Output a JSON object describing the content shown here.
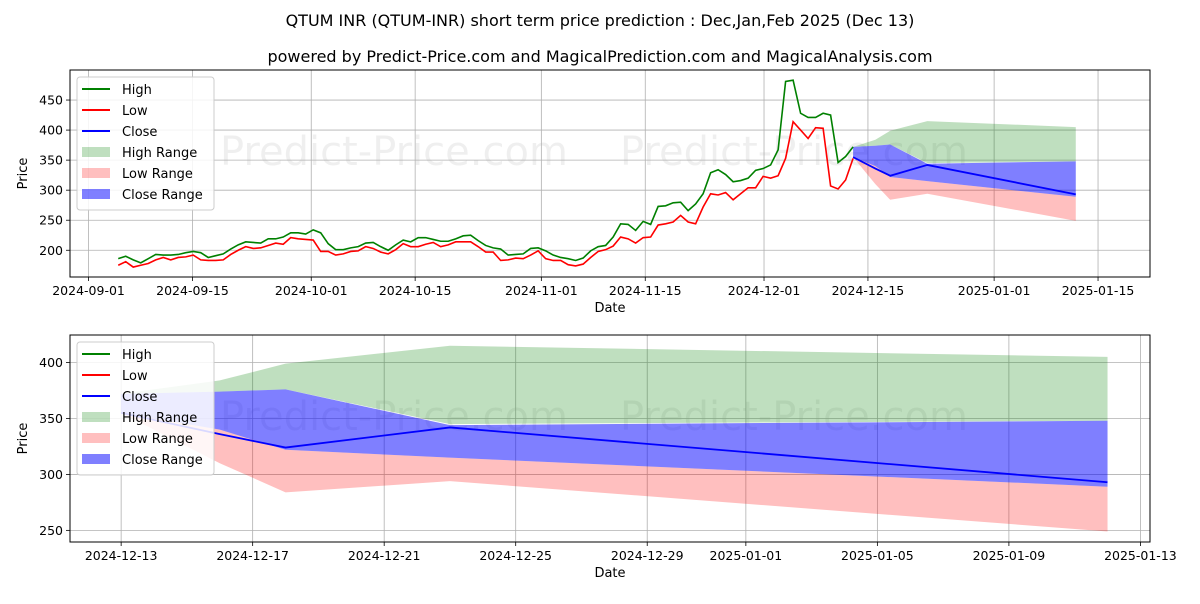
{
  "title": "QTUM INR (QTUM-INR) short term price prediction : Dec,Jan,Feb 2025 (Dec 13)",
  "subtitle": "powered by Predict-Price.com and MagicalPrediction.com and MagicalAnalysis.com",
  "watermark": "Predict-Price.com",
  "colors": {
    "high": "#008000",
    "low": "#ff0000",
    "close": "#0000ff"
  },
  "legend": [
    "High",
    "Low",
    "Close",
    "High Range",
    "Low Range",
    "Close Range"
  ],
  "chart_data": [
    {
      "type": "line",
      "id": "top",
      "xlabel": "Date",
      "ylabel": "Price",
      "xlim": [
        "2024-08-29T12:00",
        "2025-01-22T00:00"
      ],
      "ylim": [
        155.5,
        500
      ],
      "x_ticks": [
        "2024-09-01",
        "2024-09-15",
        "2024-10-01",
        "2024-10-15",
        "2024-11-01",
        "2024-11-15",
        "2024-12-01",
        "2024-12-15",
        "2025-01-01",
        "2025-01-15"
      ],
      "y_ticks": [
        200,
        250,
        300,
        350,
        400,
        450
      ],
      "grid": true,
      "legend_position": "upper-left",
      "show_history": true
    },
    {
      "type": "line",
      "id": "bottom",
      "xlabel": "Date",
      "ylabel": "Price",
      "xlim": [
        "2024-12-11T10:40",
        "2025-01-13T07:00"
      ],
      "ylim": [
        239.6,
        424.6
      ],
      "x_ticks": [
        "2024-12-13",
        "2024-12-17",
        "2024-12-21",
        "2024-12-25",
        "2024-12-29",
        "2025-01-01",
        "2025-01-05",
        "2025-01-09",
        "2025-01-13"
      ],
      "y_ticks": [
        250,
        300,
        350,
        400
      ],
      "grid": true,
      "legend_position": "upper-left",
      "show_history": false
    }
  ],
  "history": {
    "start": "2024-09-05",
    "end": "2024-12-13",
    "high": [
      186,
      190,
      184,
      179,
      186,
      193,
      192,
      192,
      193,
      196,
      198,
      196,
      188,
      191,
      194,
      202,
      209,
      214,
      213,
      212,
      219,
      219,
      222,
      229,
      229,
      227,
      234,
      229,
      211,
      201,
      201,
      204,
      206,
      212,
      213,
      206,
      200,
      209,
      217,
      214,
      221,
      221,
      218,
      215,
      215,
      219,
      224,
      225,
      216,
      208,
      204,
      202,
      192,
      193,
      194,
      203,
      204,
      199,
      192,
      188,
      186,
      183,
      187,
      199,
      206,
      208,
      222,
      244,
      243,
      233,
      248,
      243,
      273,
      274,
      279,
      280,
      266,
      277,
      294,
      329,
      334,
      326,
      314,
      316,
      320,
      333,
      336,
      342,
      367,
      481,
      483,
      428,
      421,
      421,
      428,
      425,
      346,
      356,
      372
    ],
    "low": [
      175,
      181,
      172,
      175,
      178,
      184,
      188,
      184,
      188,
      189,
      192,
      184,
      183,
      183,
      184,
      193,
      200,
      206,
      203,
      204,
      208,
      212,
      210,
      221,
      219,
      218,
      217,
      198,
      198,
      192,
      194,
      198,
      199,
      206,
      203,
      197,
      194,
      201,
      211,
      206,
      206,
      210,
      213,
      206,
      209,
      214,
      214,
      214,
      206,
      197,
      197,
      183,
      184,
      187,
      186,
      192,
      199,
      186,
      183,
      183,
      176,
      174,
      177,
      188,
      198,
      201,
      207,
      222,
      219,
      212,
      221,
      222,
      242,
      244,
      247,
      258,
      247,
      244,
      272,
      294,
      292,
      296,
      284,
      294,
      304,
      304,
      323,
      320,
      324,
      353,
      414,
      400,
      386,
      404,
      403,
      307,
      302,
      317,
      353
    ]
  },
  "forecast": {
    "dates": [
      "2024-12-13",
      "2024-12-16",
      "2024-12-18",
      "2024-12-23",
      "2025-01-12"
    ],
    "close": [
      355,
      336,
      324,
      342,
      293
    ],
    "high_range": {
      "upper": [
        372,
        384,
        399,
        415,
        405
      ],
      "lower": [
        372,
        374,
        376,
        345,
        348
      ]
    },
    "low_range": {
      "upper": [
        355,
        340,
        322,
        315,
        289
      ],
      "lower": [
        355,
        310,
        284,
        294,
        249
      ]
    },
    "close_range": {
      "upper": [
        372,
        374,
        376,
        344,
        348
      ],
      "lower": [
        355,
        340,
        322,
        315,
        289
      ]
    }
  }
}
